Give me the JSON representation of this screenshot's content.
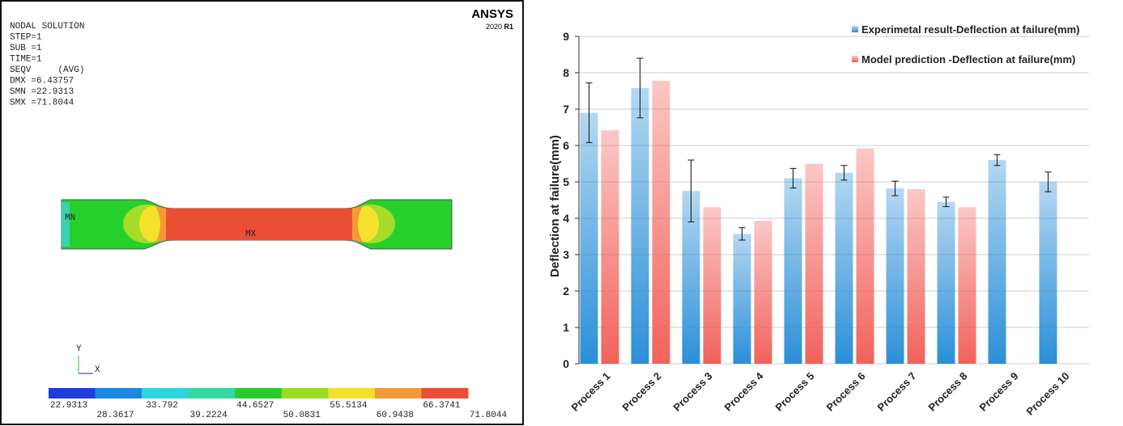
{
  "ansys_panel": {
    "header": [
      "NODAL SOLUTION",
      "STEP=1",
      "SUB =1",
      "TIME=1",
      "SEQV     (AVG)",
      "DMX =6.43757",
      "SMN =22.9313",
      "SMX =71.8044"
    ],
    "logo": "ANSYS",
    "version": "2020",
    "release": "R1",
    "min_marker": "MN",
    "max_marker": "MX",
    "axis_y": "Y",
    "axis_x": "X",
    "legend_labels": [
      "22.9313",
      "28.3617",
      "33.792",
      "39.2224",
      "44.6527",
      "50.0831",
      "55.5134",
      "60.9438",
      "66.3741",
      "71.8044"
    ]
  },
  "chart_data": {
    "type": "bar",
    "y_label": "Deflection at failure(mm)",
    "categories": [
      "Process 1",
      "Process 2",
      "Process 3",
      "Process 4",
      "Process 5",
      "Process 6",
      "Process 7",
      "Process 8",
      "Process 9",
      "Process 10"
    ],
    "series": [
      {
        "name": "Experimetal result-Deflection at failure(mm)",
        "color": "#2b8fd8",
        "values": [
          6.9,
          7.58,
          4.75,
          3.57,
          5.1,
          5.25,
          4.82,
          4.45,
          5.6,
          5.0
        ],
        "errors": [
          0.82,
          0.82,
          0.85,
          0.17,
          0.27,
          0.2,
          0.2,
          0.13,
          0.15,
          0.27
        ]
      },
      {
        "name": "Model prediction -Deflection at failure(mm)",
        "color": "#f2625c",
        "values": [
          6.42,
          7.78,
          4.3,
          3.93,
          5.5,
          5.92,
          4.8,
          4.3,
          null,
          null
        ]
      }
    ],
    "ylim": [
      0,
      9
    ],
    "yticks": [
      0,
      1,
      2,
      3,
      4,
      5,
      6,
      7,
      8,
      9
    ],
    "grid": true,
    "legend": "top-right"
  }
}
